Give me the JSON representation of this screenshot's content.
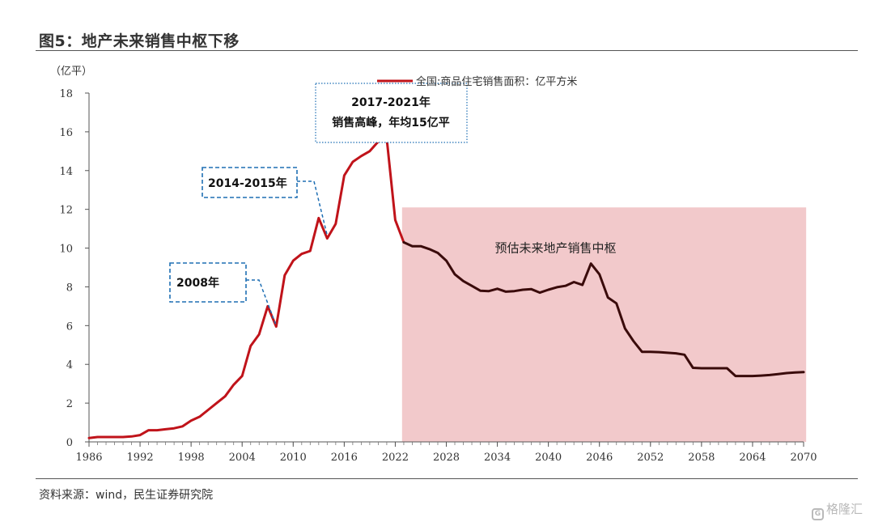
{
  "figure_title": "图5：地产未来销售中枢下移",
  "source": "资料来源：wind，民生证券研究院",
  "watermark": "格隆汇",
  "colors": {
    "history_line": "#c0131a",
    "forecast_line": "#3a0b0b",
    "forecast_shade": "#f2c9cb",
    "annotation_box": "#1f6fb4"
  },
  "chart_data": {
    "type": "line",
    "unit_label": "（亿平）",
    "ylim": [
      0,
      18
    ],
    "yticks": [
      0,
      2,
      4,
      6,
      8,
      10,
      12,
      14,
      16,
      18
    ],
    "xlim": [
      1986,
      2070
    ],
    "xticks": [
      1986,
      1992,
      1998,
      2004,
      2010,
      2016,
      2022,
      2028,
      2034,
      2040,
      2046,
      2052,
      2058,
      2064,
      2070
    ],
    "grid": false,
    "legend_position": "top",
    "series": [
      {
        "name": "全国:商品住宅销售面积：亿平方米",
        "role": "history",
        "points": [
          [
            1986,
            0.2
          ],
          [
            1987,
            0.25
          ],
          [
            1988,
            0.25
          ],
          [
            1989,
            0.25
          ],
          [
            1990,
            0.25
          ],
          [
            1991,
            0.28
          ],
          [
            1992,
            0.35
          ],
          [
            1993,
            0.6
          ],
          [
            1994,
            0.6
          ],
          [
            1995,
            0.65
          ],
          [
            1996,
            0.7
          ],
          [
            1997,
            0.8
          ],
          [
            1998,
            1.1
          ],
          [
            1999,
            1.3
          ],
          [
            2000,
            1.65
          ],
          [
            2001,
            2.0
          ],
          [
            2002,
            2.35
          ],
          [
            2003,
            2.95
          ],
          [
            2004,
            3.4
          ],
          [
            2005,
            4.95
          ],
          [
            2006,
            5.55
          ],
          [
            2007,
            7.0
          ],
          [
            2008,
            5.95
          ],
          [
            2009,
            8.6
          ],
          [
            2010,
            9.35
          ],
          [
            2011,
            9.7
          ],
          [
            2012,
            9.85
          ],
          [
            2013,
            11.55
          ],
          [
            2014,
            10.5
          ],
          [
            2015,
            11.25
          ],
          [
            2016,
            13.75
          ],
          [
            2017,
            14.45
          ],
          [
            2018,
            14.75
          ],
          [
            2019,
            15.0
          ],
          [
            2020,
            15.5
          ],
          [
            2021,
            15.65
          ],
          [
            2022,
            11.45
          ],
          [
            2023,
            10.3
          ]
        ]
      },
      {
        "name": "预估",
        "role": "forecast",
        "points": [
          [
            2023,
            10.3
          ],
          [
            2024,
            10.1
          ],
          [
            2025,
            10.1
          ],
          [
            2026,
            9.95
          ],
          [
            2027,
            9.75
          ],
          [
            2028,
            9.35
          ],
          [
            2029,
            8.65
          ],
          [
            2030,
            8.3
          ],
          [
            2031,
            8.05
          ],
          [
            2032,
            7.8
          ],
          [
            2033,
            7.78
          ],
          [
            2034,
            7.9
          ],
          [
            2035,
            7.75
          ],
          [
            2036,
            7.78
          ],
          [
            2037,
            7.85
          ],
          [
            2038,
            7.88
          ],
          [
            2039,
            7.7
          ],
          [
            2040,
            7.85
          ],
          [
            2041,
            7.98
          ],
          [
            2042,
            8.05
          ],
          [
            2043,
            8.25
          ],
          [
            2044,
            8.1
          ],
          [
            2045,
            9.2
          ],
          [
            2046,
            8.65
          ],
          [
            2047,
            7.45
          ],
          [
            2048,
            7.15
          ],
          [
            2049,
            5.85
          ],
          [
            2050,
            5.2
          ],
          [
            2051,
            4.65
          ],
          [
            2052,
            4.65
          ],
          [
            2053,
            4.63
          ],
          [
            2054,
            4.6
          ],
          [
            2055,
            4.57
          ],
          [
            2056,
            4.5
          ],
          [
            2057,
            3.82
          ],
          [
            2058,
            3.8
          ],
          [
            2059,
            3.8
          ],
          [
            2060,
            3.8
          ],
          [
            2061,
            3.8
          ],
          [
            2062,
            3.4
          ],
          [
            2063,
            3.4
          ],
          [
            2064,
            3.4
          ],
          [
            2065,
            3.42
          ],
          [
            2066,
            3.45
          ],
          [
            2067,
            3.5
          ],
          [
            2068,
            3.55
          ],
          [
            2069,
            3.58
          ],
          [
            2070,
            3.6
          ]
        ]
      }
    ],
    "forecast_region": {
      "label": "预估未来地产销售中枢",
      "x_start": 2022.8,
      "x_end": 2070.3,
      "y_top": 12.1
    },
    "annotations": [
      {
        "text": "2008年",
        "target": [
          2008,
          6.0
        ],
        "style": "dashed"
      },
      {
        "text": "2014-2015年",
        "target": [
          2014,
          10.4
        ],
        "style": "dashed"
      },
      {
        "lines": [
          "2017-2021年",
          "销售高峰，年均15亿平"
        ],
        "target": [
          2019,
          15.0
        ],
        "style": "dotted"
      }
    ]
  }
}
